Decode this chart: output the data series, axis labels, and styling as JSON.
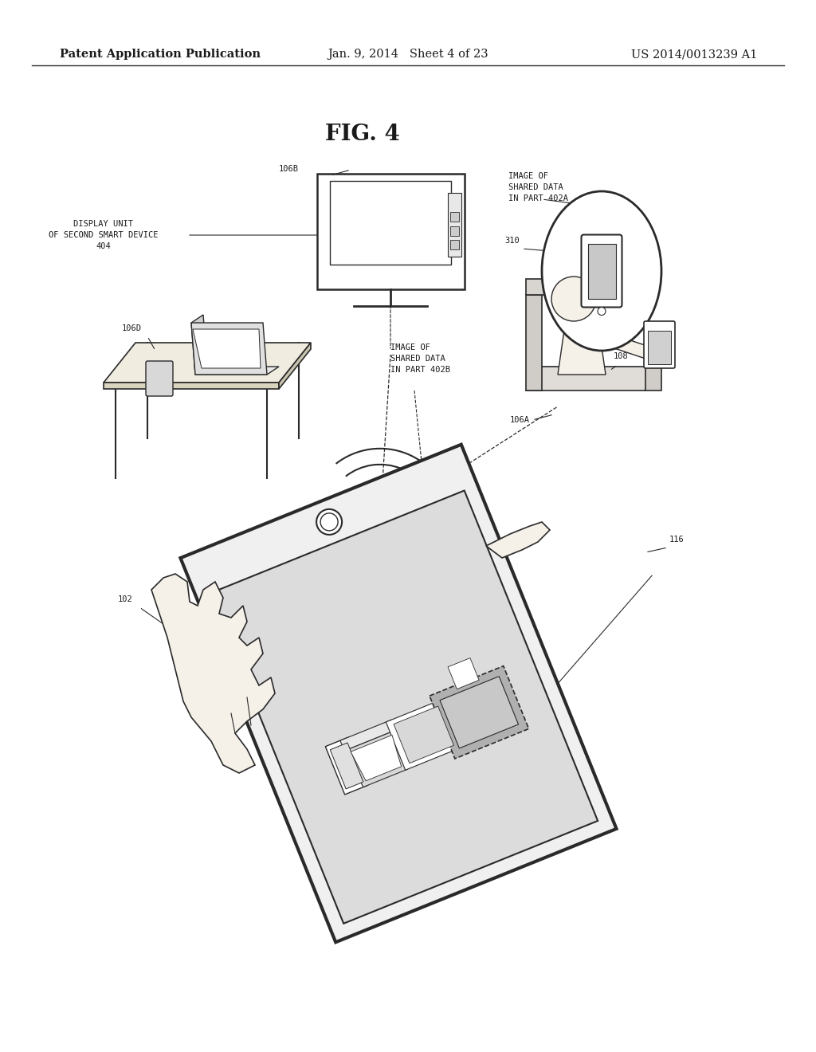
{
  "header_left": "Patent Application Publication",
  "header_center": "Jan. 9, 2014   Sheet 4 of 23",
  "header_right": "US 2014/0013239 A1",
  "figure_title": "FIG. 4",
  "bg_color": "#ffffff",
  "line_color": "#2a2a2a",
  "text_color": "#1a1a1a",
  "header_fontsize": 10.5,
  "title_fontsize": 20,
  "label_fontsize": 7.5
}
